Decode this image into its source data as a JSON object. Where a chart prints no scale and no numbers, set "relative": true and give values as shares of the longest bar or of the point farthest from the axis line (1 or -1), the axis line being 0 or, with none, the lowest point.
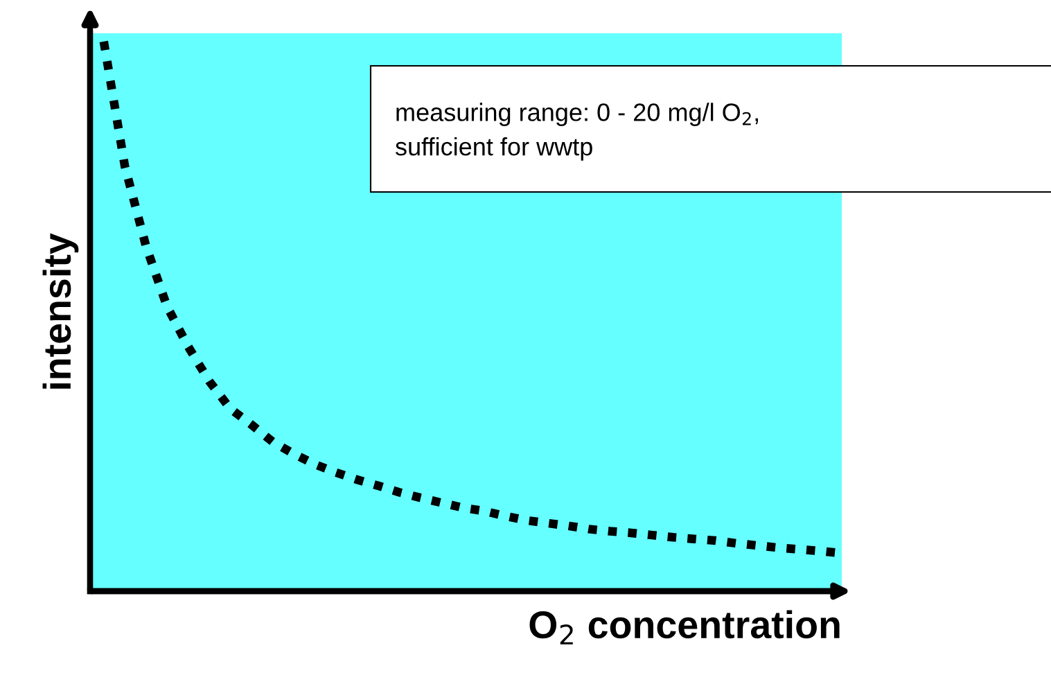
{
  "chart_data": {
    "type": "line",
    "relative": true,
    "xlabel": "O$_{2}$ concentration",
    "ylabel": "intensity",
    "annotations": [
      "measuring range: 0 - 20 mg/l O$_{2}$,\nsufficient for wwtp"
    ],
    "categories": [
      null,
      null,
      null,
      null,
      null,
      null,
      null,
      null,
      null,
      null,
      null,
      null,
      null,
      null,
      null,
      null,
      null,
      null,
      null,
      null,
      null,
      null,
      null,
      null,
      null,
      null,
      null,
      null,
      null,
      null,
      null,
      null,
      null,
      null,
      null,
      null
    ],
    "series": [
      {
        "color": "#000000",
        "values": [
          1.0,
          0.773,
          0.628,
          0.518,
          0.445,
          0.382,
          0.332,
          0.303,
          0.272,
          0.25,
          0.231,
          0.216,
          0.203,
          0.192,
          0.18,
          0.17,
          0.161,
          0.152,
          0.146,
          0.137,
          0.129,
          0.124,
          0.119,
          0.113,
          0.109,
          0.106,
          0.102,
          0.098,
          0.095,
          0.092,
          0.087,
          0.083,
          0.079,
          0.076,
          0.073,
          0.069
        ]
      }
    ],
    "line_style": "dotted",
    "marker": "none",
    "grid": false,
    "legend": false,
    "tick_labels": false
  }
}
